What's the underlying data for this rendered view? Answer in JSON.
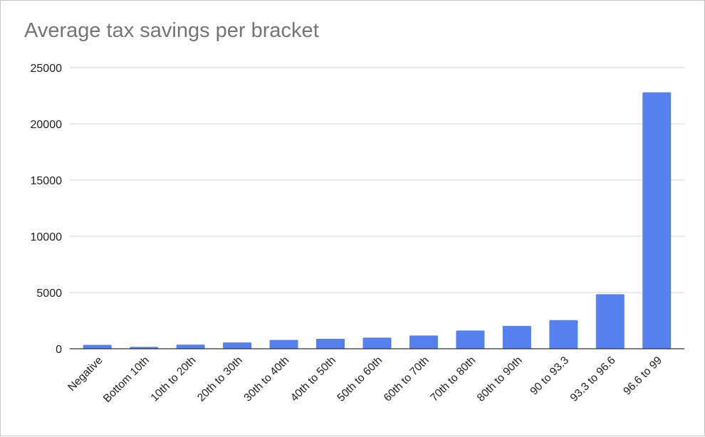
{
  "chart_data": {
    "type": "bar",
    "title": "Average tax savings per bracket",
    "xlabel": "",
    "ylabel": "",
    "categories": [
      "Negative",
      "Bottom 10th",
      "10th to 20th",
      "20th to 30th",
      "30th to 40th",
      "40th to 50th",
      "50th to 60th",
      "60th to 70th",
      "70th to 80th",
      "80th to 90th",
      "90 to 93.3",
      "93.3 to 96.6",
      "96.6 to 99"
    ],
    "values": [
      350,
      170,
      360,
      560,
      780,
      890,
      990,
      1180,
      1620,
      2030,
      2550,
      4850,
      22800
    ],
    "ylim": [
      0,
      25000
    ],
    "yticks": [
      "0",
      "5000",
      "10000",
      "15000",
      "20000",
      "25000"
    ],
    "grid": true,
    "legend": "none",
    "bar_color": "#5580ee"
  }
}
